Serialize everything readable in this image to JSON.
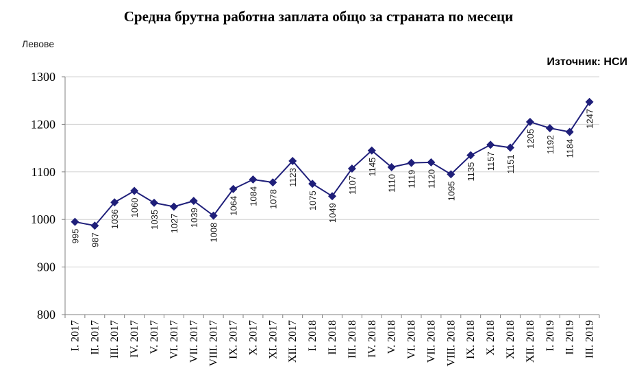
{
  "chart_data": {
    "type": "line",
    "title": "Средна брутна работна заплата общо за страната по месеци",
    "ylabel": "Левове",
    "source": "Източник: НСИ",
    "ylim": [
      800,
      1300
    ],
    "yticks": [
      800,
      900,
      1000,
      1100,
      1200,
      1300
    ],
    "grid": true,
    "colors": {
      "line": "#1f1f7a",
      "grid": "#d0d0d0",
      "axis": "#808080"
    },
    "categories": [
      "I. 2017",
      "II. 2017",
      "III. 2017",
      "IV. 2017",
      "V. 2017",
      "VI. 2017",
      "VII. 2017",
      "VIII. 2017",
      "IX. 2017",
      "X. 2017",
      "XI. 2017",
      "XII. 2017",
      "I. 2018",
      "II. 2018",
      "III. 2018",
      "IV. 2018",
      "V. 2018",
      "VI. 2018",
      "VII. 2018",
      "VIII. 2018",
      "IX. 2018",
      "X. 2018",
      "XI. 2018",
      "XII. 2018",
      "I. 2019",
      "II. 2019",
      "III. 2019"
    ],
    "values": [
      995,
      987,
      1036,
      1060,
      1035,
      1027,
      1039,
      1008,
      1064,
      1084,
      1078,
      1123,
      1075,
      1049,
      1107,
      1145,
      1110,
      1119,
      1120,
      1095,
      1135,
      1157,
      1151,
      1205,
      1192,
      1184,
      1247
    ]
  }
}
